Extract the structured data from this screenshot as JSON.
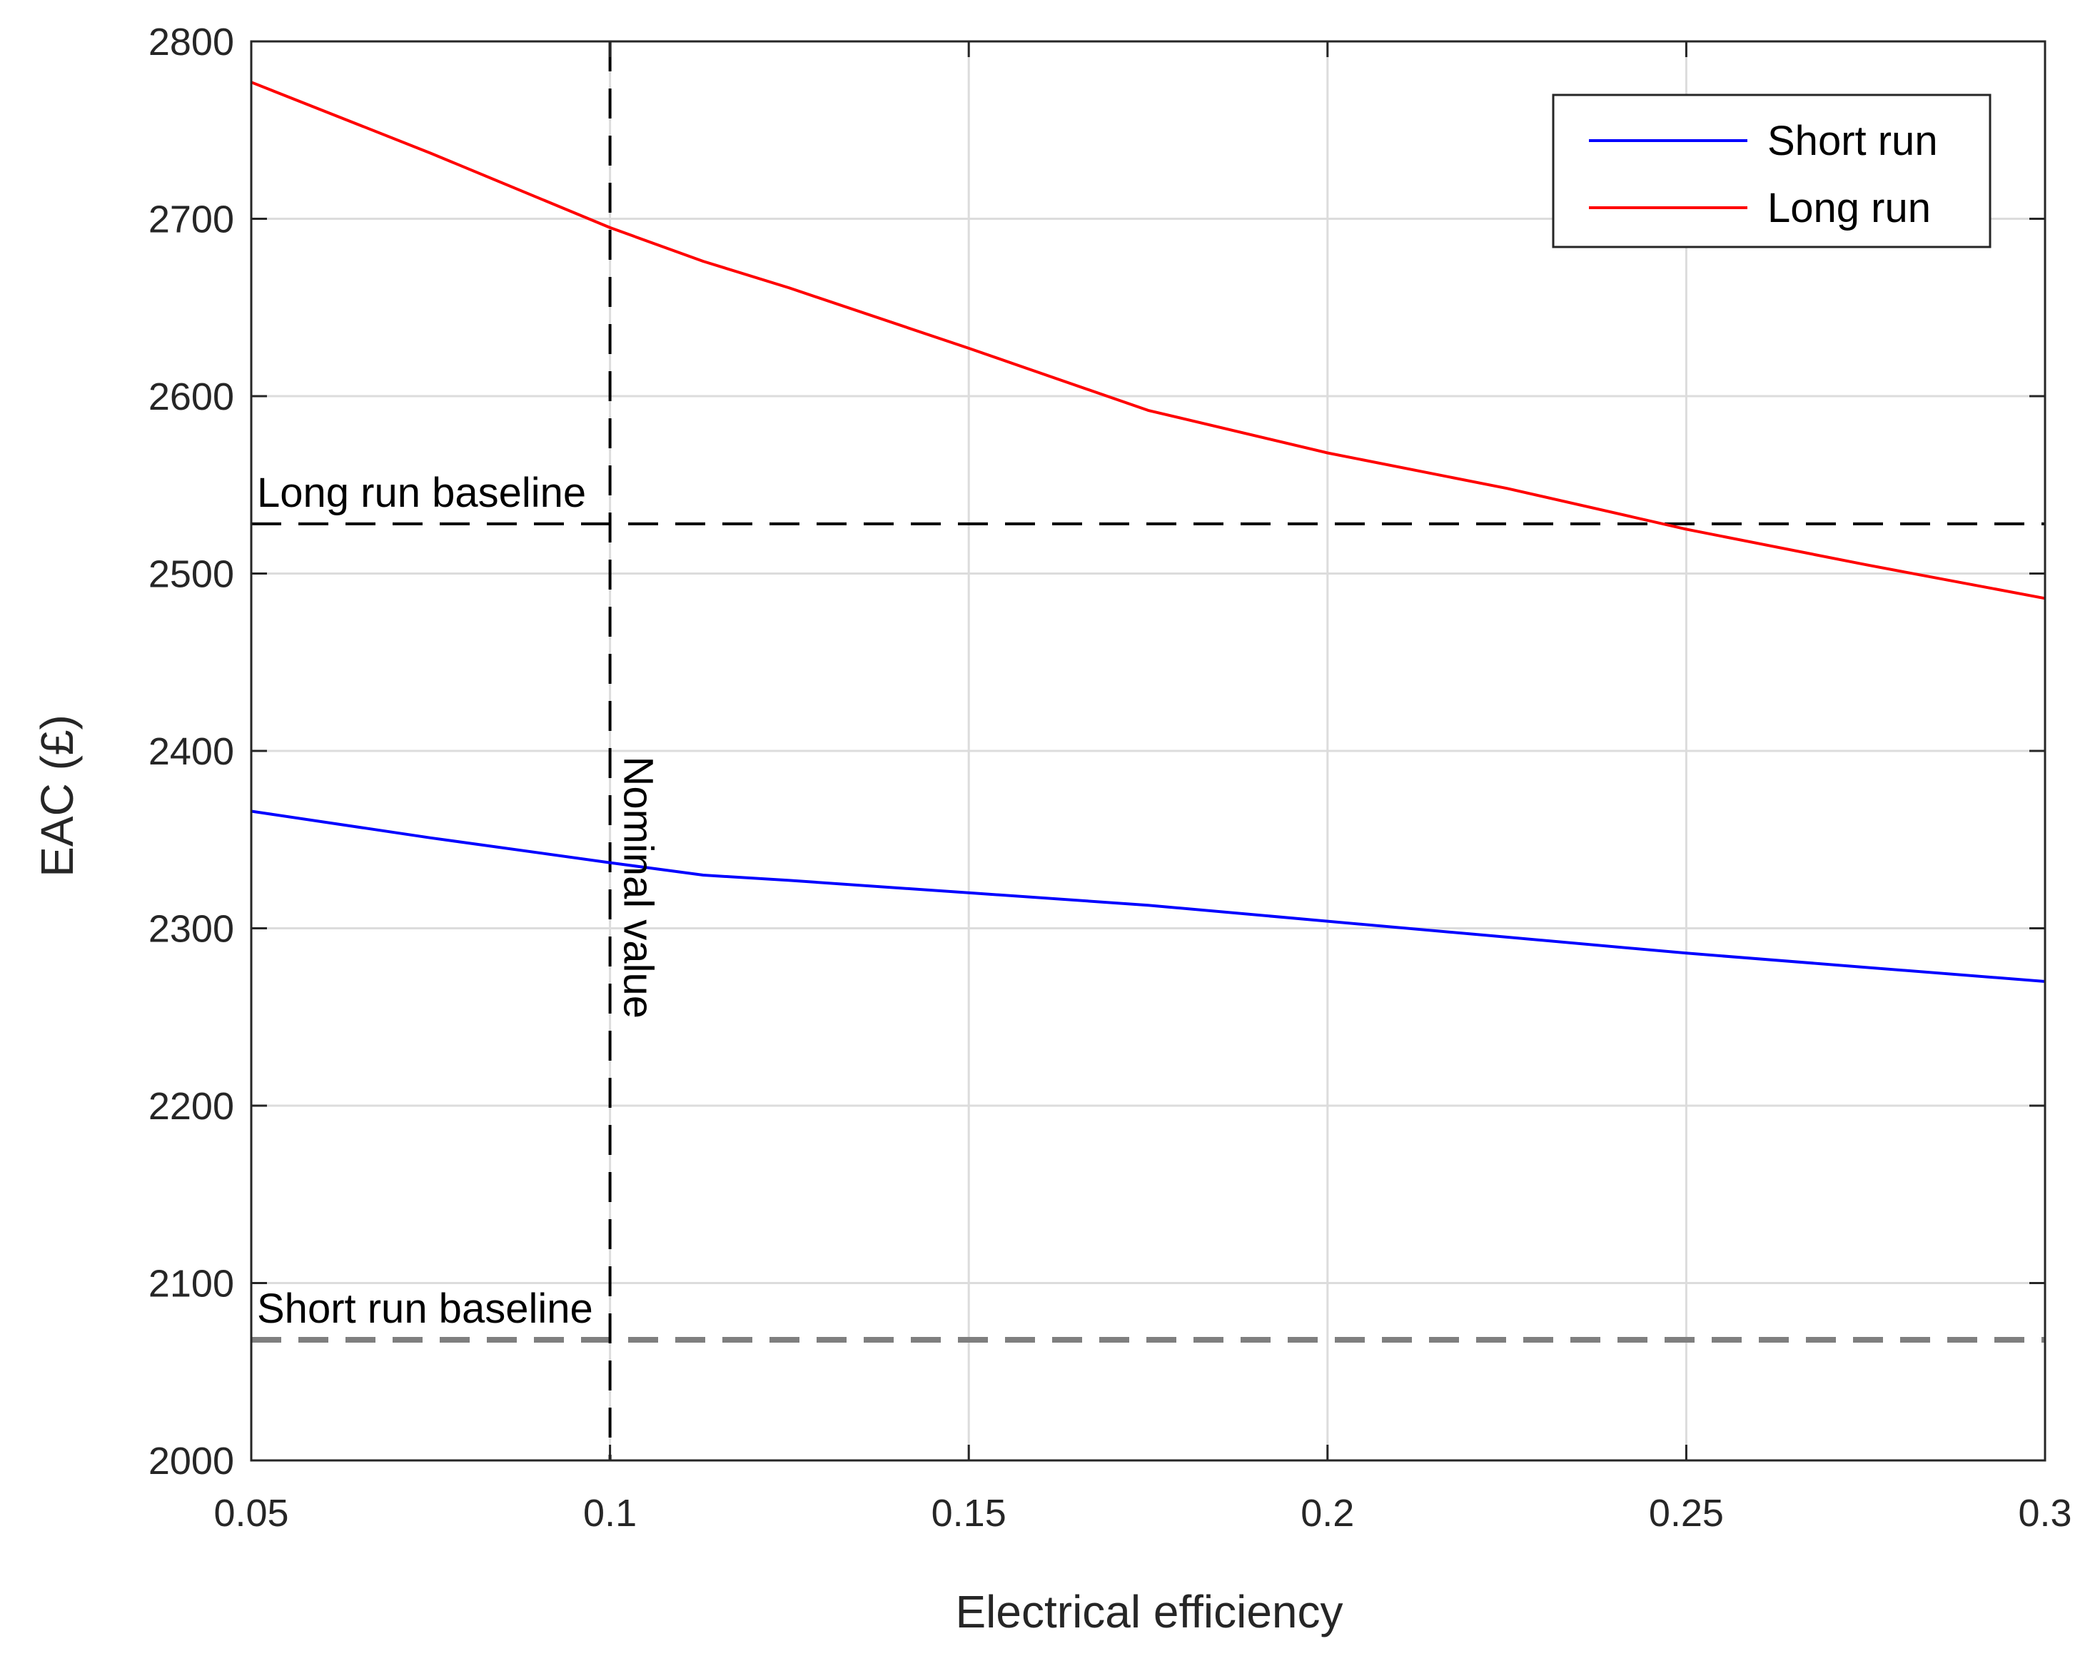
{
  "chart_data": {
    "type": "line",
    "title": "",
    "xlabel": "Electrical efficiency",
    "ylabel": "EAC (£)",
    "xlim": [
      0.05,
      0.3
    ],
    "ylim": [
      2000,
      2800
    ],
    "xticks": [
      0.05,
      0.1,
      0.15,
      0.2,
      0.25,
      0.3
    ],
    "xtick_labels": [
      "0.05",
      "0.1",
      "0.15",
      "0.2",
      "0.25",
      "0.3"
    ],
    "yticks": [
      2000,
      2100,
      2200,
      2300,
      2400,
      2500,
      2600,
      2700,
      2800
    ],
    "ytick_labels": [
      "2000",
      "2100",
      "2200",
      "2300",
      "2400",
      "2500",
      "2600",
      "2700",
      "2800"
    ],
    "grid": true,
    "legend_position": "top-right",
    "series": [
      {
        "name": "Short run",
        "color": "#0000ff",
        "x": [
          0.05,
          0.075,
          0.1,
          0.113,
          0.125,
          0.15,
          0.175,
          0.2,
          0.225,
          0.25,
          0.275,
          0.3
        ],
        "y": [
          2366,
          2351,
          2337,
          2330,
          2327,
          2320,
          2313,
          2304,
          2295,
          2286,
          2278,
          2270
        ]
      },
      {
        "name": "Long run",
        "color": "#ff0000",
        "x": [
          0.05,
          0.075,
          0.1,
          0.113,
          0.125,
          0.15,
          0.175,
          0.2,
          0.225,
          0.25,
          0.275,
          0.3
        ],
        "y": [
          2777,
          2737,
          2695,
          2676,
          2661,
          2627,
          2592,
          2568,
          2548,
          2525,
          2505,
          2486
        ]
      }
    ],
    "reference_lines": [
      {
        "orientation": "horizontal",
        "value": 2528,
        "label": "Long run baseline",
        "color": "#000000"
      },
      {
        "orientation": "horizontal",
        "value": 2068,
        "label": "Short run baseline",
        "color": "#7f7f7f"
      },
      {
        "orientation": "vertical",
        "value": 0.1,
        "label": "Nominal value",
        "color": "#000000"
      }
    ]
  }
}
